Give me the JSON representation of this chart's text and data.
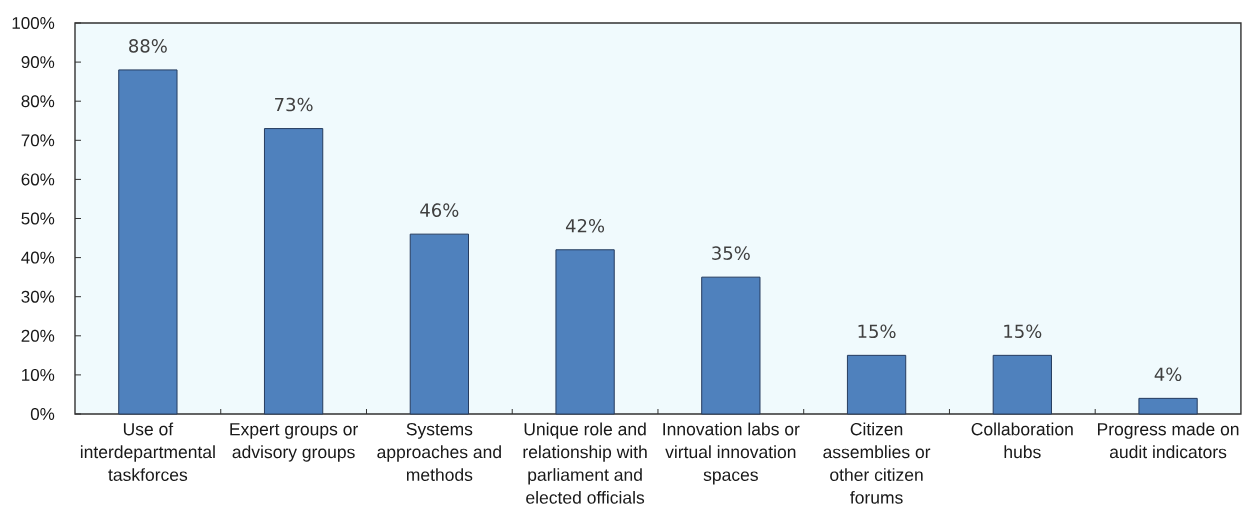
{
  "chart_data": {
    "type": "bar",
    "categories": [
      "Use of interdepartmental taskforces",
      "Expert groups or advisory groups",
      "Systems approaches and methods",
      "Unique role and relationship with parliament and elected officials",
      "Innovation labs or virtual innovation spaces",
      "Citizen assemblies or other citizen forums",
      "Collaboration hubs",
      "Progress made on audit indicators"
    ],
    "values": [
      88,
      73,
      46,
      42,
      35,
      15,
      15,
      4
    ],
    "value_labels": [
      "88%",
      "73%",
      "46%",
      "42%",
      "35%",
      "15%",
      "15%",
      "4%"
    ],
    "color": "#4f81bd",
    "ylim": [
      0,
      100
    ],
    "yticks": [
      {
        "value": 0,
        "label": "0%"
      },
      {
        "value": 10,
        "label": "10%"
      },
      {
        "value": 20,
        "label": "20%"
      },
      {
        "value": 30,
        "label": "30%"
      },
      {
        "value": 40,
        "label": "40%"
      },
      {
        "value": 50,
        "label": "50%"
      },
      {
        "value": 60,
        "label": "60%"
      },
      {
        "value": 70,
        "label": "70%"
      },
      {
        "value": 80,
        "label": "80%"
      },
      {
        "value": 90,
        "label": "90%"
      },
      {
        "value": 100,
        "label": "100%"
      }
    ]
  }
}
